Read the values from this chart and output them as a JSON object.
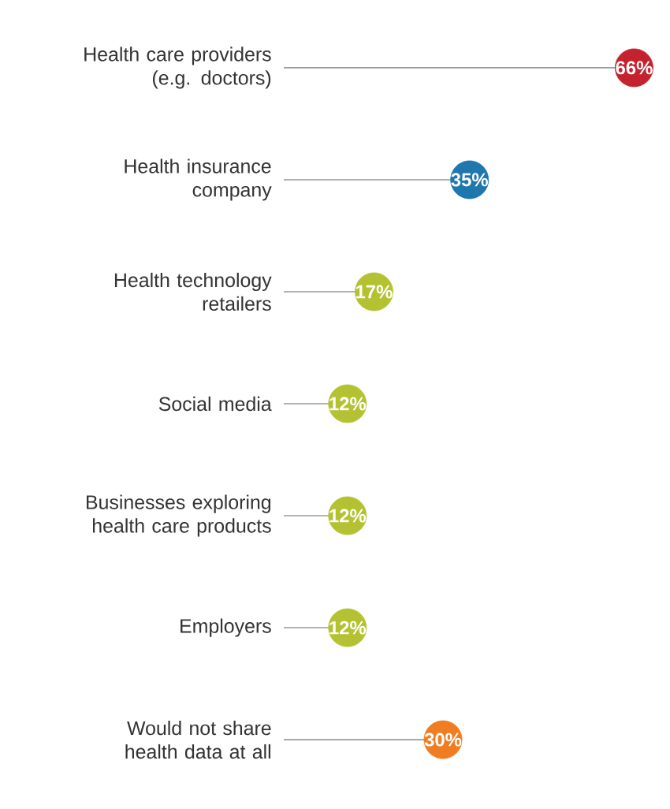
{
  "chart_data": {
    "type": "lollipop",
    "orientation": "horizontal",
    "data_labels": true,
    "categories": [
      "Health care providers (e.g. doctors)",
      "Health insurance company",
      "Health technology retailers",
      "Social media",
      "Businesses exploring health care products",
      "Employers",
      "Would not share health data at all"
    ],
    "values": [
      66,
      35,
      17,
      12,
      12,
      12,
      30
    ],
    "value_labels": [
      "66%",
      "35%",
      "17%",
      "12%",
      "12%",
      "12%",
      "30%"
    ],
    "colors": [
      "#c4222f",
      "#1f77ad",
      "#b4c232",
      "#b4c232",
      "#b4c232",
      "#b4c232",
      "#f07d22"
    ]
  }
}
